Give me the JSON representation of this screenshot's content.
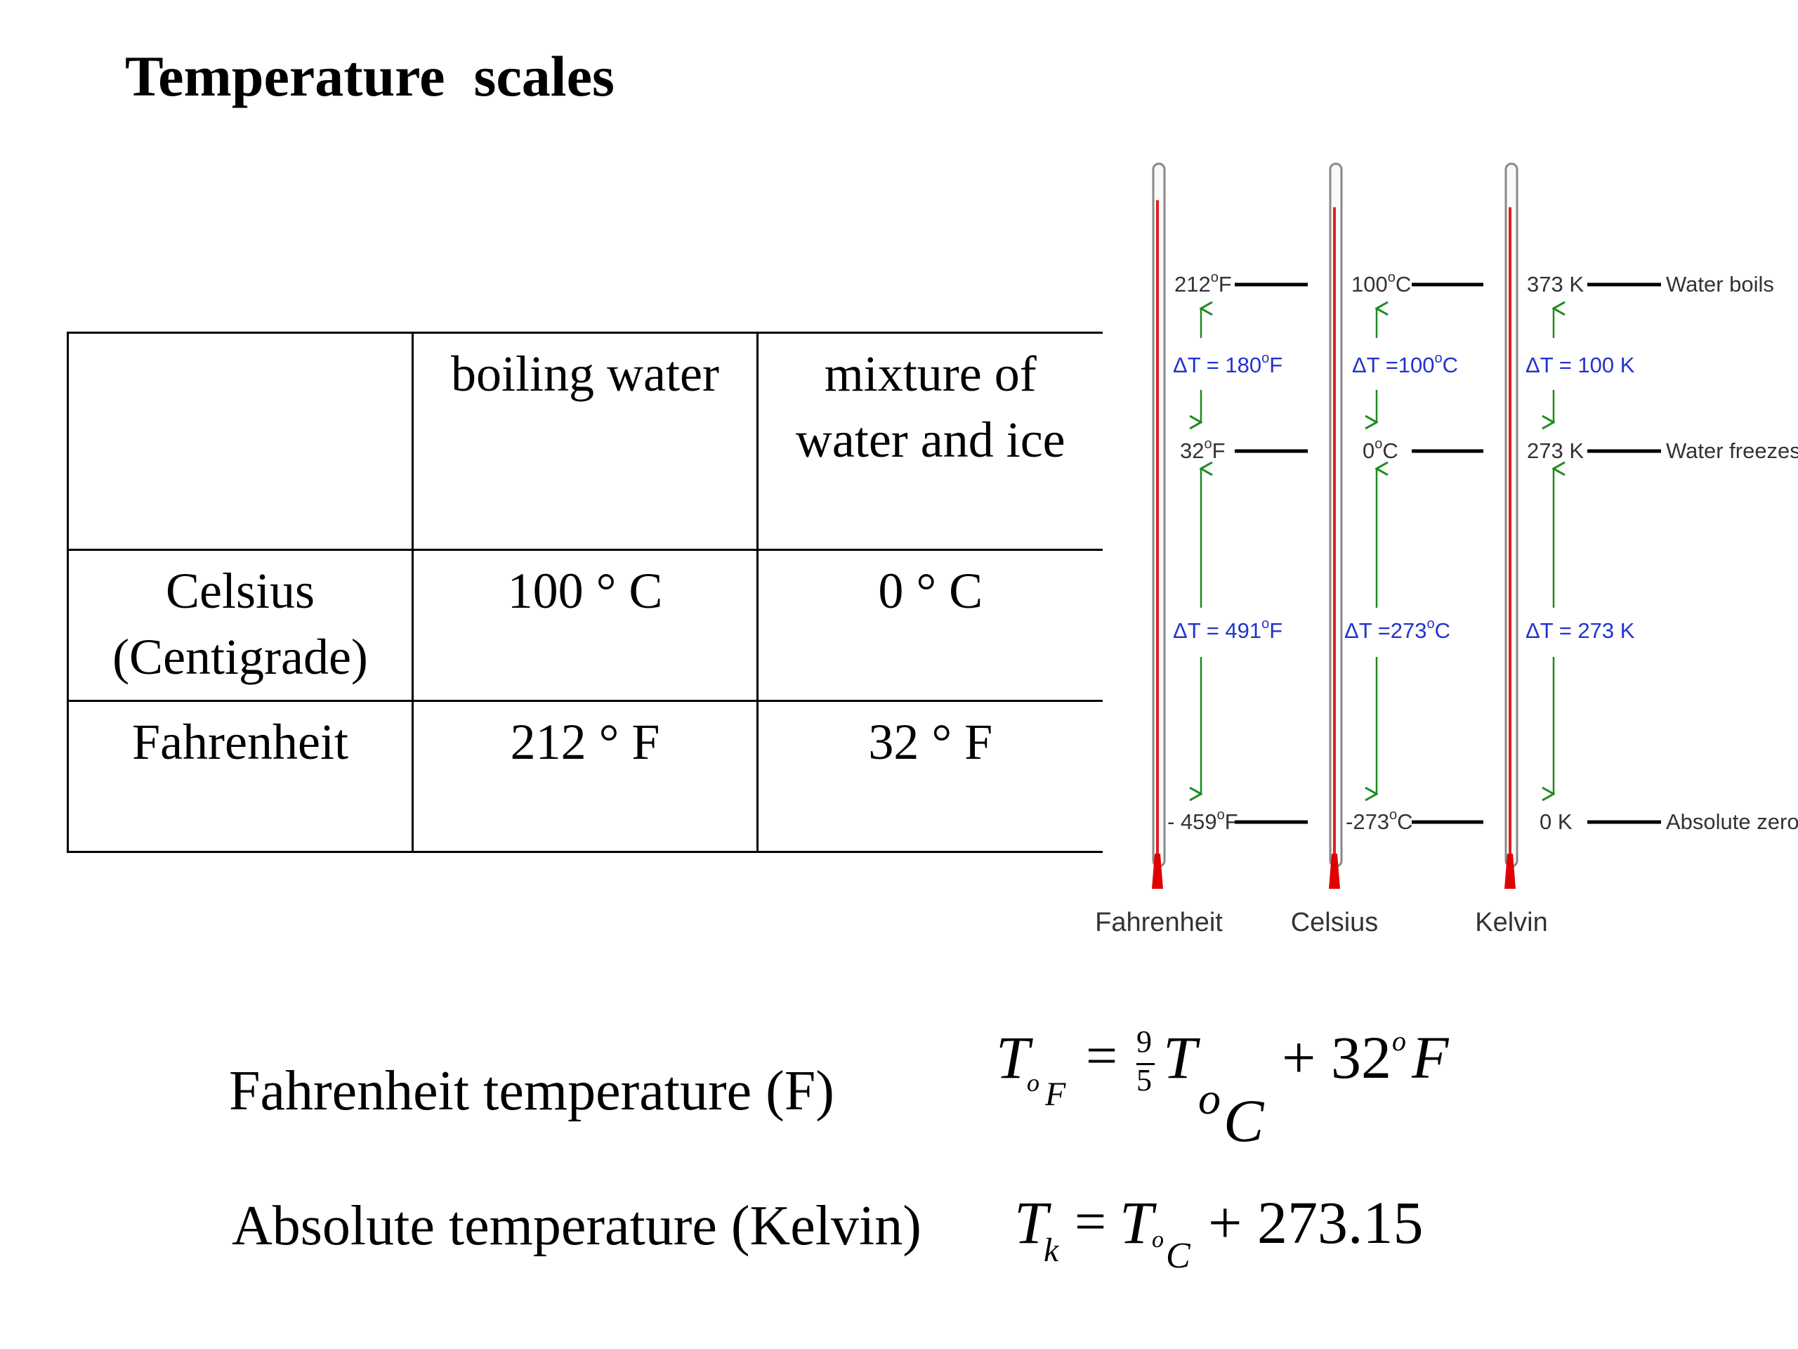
{
  "title": "Temperature  scales",
  "table": {
    "header": [
      "",
      "boiling water",
      "mixture of water and ice"
    ],
    "header_lines": {
      "c2_line1": "mixture of",
      "c2_line2": "water and ice"
    },
    "rows": [
      {
        "name_line1": "Celsius",
        "name_line2": "(Centigrade)",
        "boiling": "100 ° C",
        "ice": "0 ° C"
      },
      {
        "name_line1": "Fahrenheit",
        "name_line2": "",
        "boiling": "212 ° F",
        "ice": "32 ° F"
      }
    ]
  },
  "diagram": {
    "fahrenheit": {
      "name": "Fahrenheit",
      "boil": "212",
      "boil_unit": "F",
      "freeze": "32",
      "freeze_unit": "F",
      "zero": "- 459",
      "zero_unit": "F",
      "delta_upper": "ΔT = 180",
      "delta_upper_unit": "F",
      "delta_lower": "ΔT = 491",
      "delta_lower_unit": "F"
    },
    "celsius": {
      "name": "Celsius",
      "boil": "100",
      "boil_unit": "C",
      "freeze": "0",
      "freeze_unit": "C",
      "zero": "-273",
      "zero_unit": "C",
      "delta_upper": "ΔT =100",
      "delta_upper_unit": "C",
      "delta_lower": "ΔT =273",
      "delta_lower_unit": "C"
    },
    "kelvin": {
      "name": "Kelvin",
      "boil": "373 K",
      "freeze": "273 K",
      "zero": "0 K",
      "delta_upper": "ΔT = 100  K",
      "delta_lower": "ΔT = 273  K"
    },
    "degree_symbol": "o",
    "side_labels": {
      "boils": "Water boils",
      "freezes": "Water freezes",
      "absolute": "Absolute zero"
    }
  },
  "formulas": {
    "fahrenheit_label": "Fahrenheit temperature (F)",
    "kelvin_label": "Absolute temperature (Kelvin)",
    "f_T": "T",
    "f_sub_o": "o",
    "f_sub_F": "F",
    "f_eq": "=",
    "f_num": "9",
    "f_den": "5",
    "f_T2": "T",
    "f_sub_o2": "o",
    "f_sub_C": "C",
    "f_plus32": "+ 32",
    "f_sup_o": "o",
    "f_F": "F",
    "k_T": "T",
    "k_sub_k": "k",
    "k_eq": "=",
    "k_T2": "T",
    "k_sub_o": "o",
    "k_sub_C": "C",
    "k_plus": "+ 273.15"
  }
}
